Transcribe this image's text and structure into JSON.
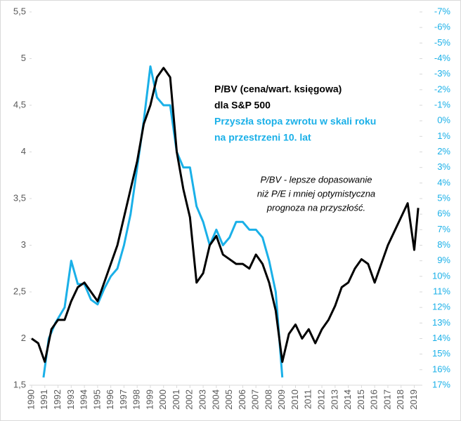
{
  "chart_data": {
    "type": "line",
    "xlim": [
      1990,
      2019.4
    ],
    "xticks": [
      1990,
      1991,
      1992,
      1993,
      1994,
      1995,
      1996,
      1997,
      1998,
      1999,
      2000,
      2001,
      2002,
      2003,
      2004,
      2005,
      2006,
      2007,
      2008,
      2009,
      2010,
      2011,
      2012,
      2013,
      2014,
      2015,
      2016,
      2017,
      2018,
      2019
    ],
    "ylim": [
      1.5,
      5.5
    ],
    "yticks": [
      {
        "value": 1.5,
        "label": "1,5"
      },
      2,
      {
        "value": 2.5,
        "label": "2,5"
      },
      3,
      {
        "value": 3.5,
        "label": "3,5"
      },
      4,
      {
        "value": 4.5,
        "label": "4,5"
      },
      5,
      {
        "value": 5.5,
        "label": "5,5"
      }
    ],
    "y2lim": [
      17,
      -7
    ],
    "y2ticks": [
      {
        "value": -7,
        "label": "-7%"
      },
      {
        "value": -6,
        "label": "-6%"
      },
      {
        "value": -5,
        "label": "-5%"
      },
      {
        "value": -4,
        "label": "-4%"
      },
      {
        "value": -3,
        "label": "-3%"
      },
      {
        "value": -2,
        "label": "-2%"
      },
      {
        "value": -1,
        "label": "-1%"
      },
      {
        "value": 0,
        "label": "0%"
      },
      {
        "value": 1,
        "label": "1%"
      },
      {
        "value": 2,
        "label": "2%"
      },
      {
        "value": 3,
        "label": "3%"
      },
      {
        "value": 4,
        "label": "4%"
      },
      {
        "value": 5,
        "label": "5%"
      },
      {
        "value": 6,
        "label": "6%"
      },
      {
        "value": 7,
        "label": "7%"
      },
      {
        "value": 8,
        "label": "8%"
      },
      {
        "value": 9,
        "label": "9%"
      },
      {
        "value": 10,
        "label": "10%"
      },
      {
        "value": 11,
        "label": "11%"
      },
      {
        "value": 12,
        "label": "12%"
      },
      {
        "value": 13,
        "label": "13%"
      },
      {
        "value": 14,
        "label": "14%"
      },
      {
        "value": 15,
        "label": "15%"
      },
      {
        "value": 16,
        "label": "16%"
      },
      {
        "value": 17,
        "label": "17%"
      }
    ],
    "series": [
      {
        "color": "#000000",
        "x": [
          1990,
          1990.5,
          1991,
          1991.5,
          1992,
          1992.5,
          1993,
          1993.5,
          1994,
          1994.5,
          1995,
          1995.5,
          1996,
          1996.5,
          1997,
          1997.5,
          1998,
          1998.5,
          1999,
          1999.5,
          2000,
          2000.5,
          2001,
          2001.5,
          2002,
          2002.5,
          2003,
          2003.5,
          2004,
          2004.5,
          2005,
          2005.5,
          2006,
          2006.5,
          2007,
          2007.5,
          2008,
          2008.5,
          2009,
          2009.5,
          2010,
          2010.5,
          2011,
          2011.5,
          2012,
          2012.5,
          2013,
          2013.5,
          2014,
          2014.5,
          2015,
          2015.5,
          2016,
          2016.5,
          2017,
          2017.5,
          2018,
          2018.5,
          2019,
          2019.3
        ],
        "values": [
          2.0,
          1.95,
          1.75,
          2.1,
          2.2,
          2.2,
          2.4,
          2.55,
          2.6,
          2.5,
          2.4,
          2.6,
          2.8,
          3.0,
          3.3,
          3.6,
          3.9,
          4.3,
          4.5,
          4.8,
          4.9,
          4.8,
          4.0,
          3.6,
          3.3,
          2.6,
          2.7,
          3.0,
          3.1,
          2.9,
          2.85,
          2.8,
          2.8,
          2.75,
          2.9,
          2.8,
          2.6,
          2.3,
          1.75,
          2.05,
          2.15,
          2.0,
          2.1,
          1.95,
          2.1,
          2.2,
          2.35,
          2.55,
          2.6,
          2.75,
          2.85,
          2.8,
          2.6,
          2.8,
          3.0,
          3.15,
          3.3,
          3.45,
          2.95,
          3.4
        ]
      },
      {
        "color": "#1ab0e8",
        "axis": "y2",
        "x": [
          1990.9,
          1991.3,
          1991.8,
          1992.5,
          1993,
          1993.5,
          1994,
          1994.5,
          1995,
          1995.5,
          1996,
          1996.5,
          1997,
          1997.5,
          1998,
          1998.5,
          1999,
          1999.5,
          2000,
          2000.5,
          2001,
          2001.5,
          2002,
          2002.5,
          2003,
          2003.5,
          2004,
          2004.5,
          2005,
          2005.5,
          2006,
          2006.5,
          2007,
          2007.5,
          2008,
          2008.5,
          2009
        ],
        "values": [
          16.5,
          14,
          13,
          12,
          9,
          10.5,
          10.5,
          11.5,
          11.8,
          10.8,
          10,
          9.5,
          8,
          6,
          3,
          0,
          -3.5,
          -1.5,
          -1,
          -1,
          2,
          3,
          3,
          5.5,
          6.5,
          8,
          7,
          8,
          7.5,
          6.5,
          6.5,
          7,
          7,
          7.5,
          9,
          11,
          16.5
        ]
      }
    ],
    "annotations": [
      {
        "text": "P/BV (cena/wart. księgowa)",
        "color": "#000000"
      },
      {
        "text": "dla S&P 500",
        "color": "#000000"
      },
      {
        "text": "Przyszła stopa zwrotu w skali roku",
        "color": "#1ab0e8"
      },
      {
        "text": "na przestrzeni 10. lat",
        "color": "#1ab0e8"
      }
    ],
    "note": [
      "P/BV - lepsze dopasowanie",
      "niż P/E i mniej optymistyczna",
      "prognoza na przyszłość."
    ]
  }
}
